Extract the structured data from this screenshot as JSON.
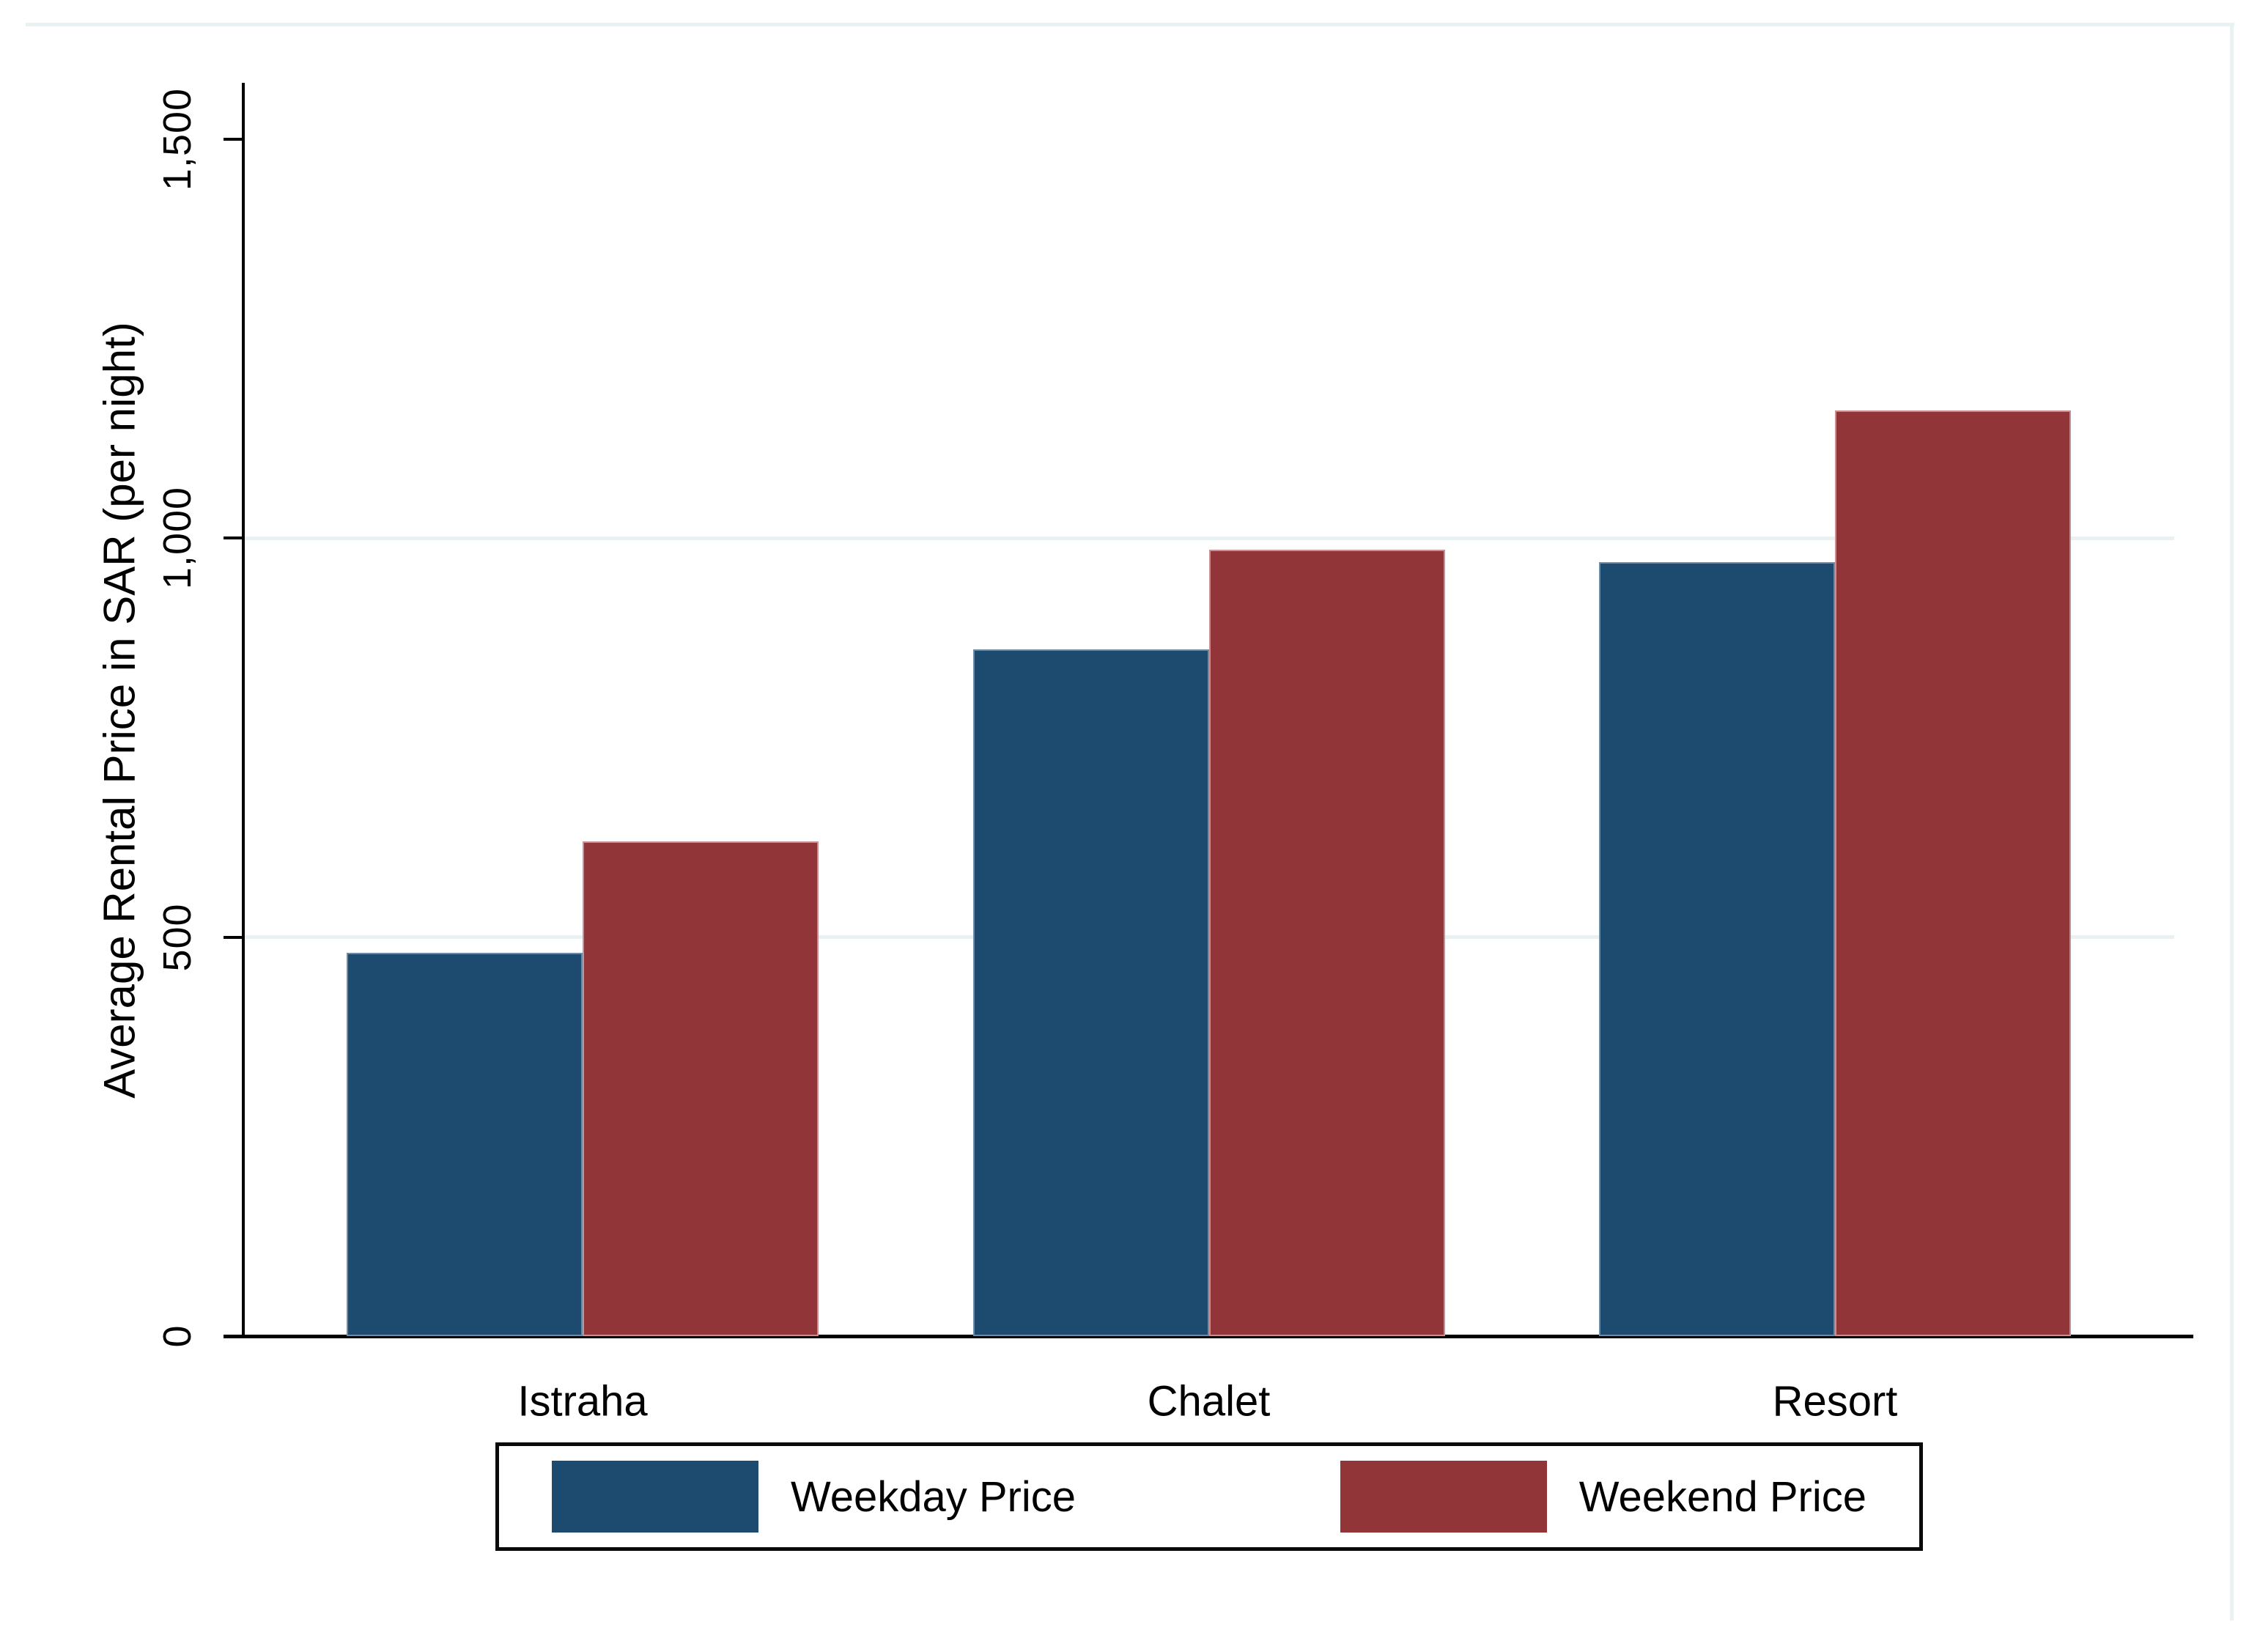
{
  "chart_data": {
    "type": "bar",
    "title": "",
    "categories": [
      "Istraha",
      "Chalet",
      "Resort"
    ],
    "series": [
      {
        "name": "Weekday Price",
        "color": "#1d4a6f",
        "edge_color": "#6e8ba6",
        "values": [
          480,
          860,
          970
        ]
      },
      {
        "name": "Weekend Price",
        "color": "#923539",
        "edge_color": "#c79094",
        "values": [
          620,
          985,
          1160
        ]
      }
    ],
    "xlabel": "",
    "ylabel": "Average Rental Price in SAR (per night)",
    "ylim": [
      0,
      1570
    ],
    "yticks": [
      {
        "value": 0,
        "label": "0"
      },
      {
        "value": 500,
        "label": "500"
      },
      {
        "value": 1000,
        "label": "1,000"
      },
      {
        "value": 1500,
        "label": "1,500"
      }
    ],
    "gridlines": [
      500,
      1000
    ],
    "grid": "horizontal light gridlines at 500 and 1,000 only",
    "legend_position": "bottom-boxed",
    "bar_orientation": "vertical-grouped"
  },
  "colors": {
    "background": "#ffffff",
    "axis": "#000000",
    "gridline": "#e9f1f2",
    "graph_edge_tint": "#e9f2f3",
    "legend_border": "#0a0a0a",
    "weekday_bar": "#1d4a6f",
    "weekend_bar": "#923539"
  }
}
